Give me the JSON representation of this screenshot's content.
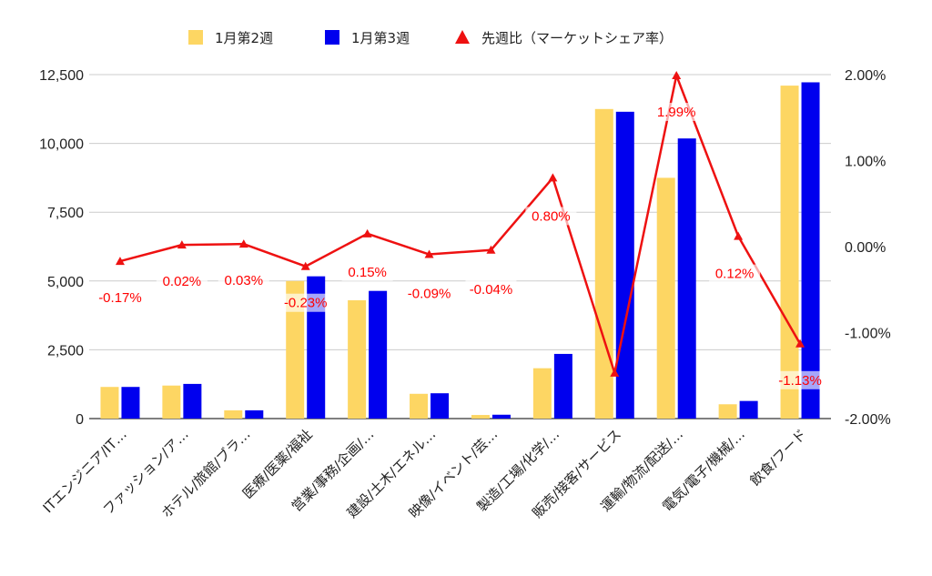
{
  "chart_data": {
    "type": "bar",
    "categories": [
      "ITエンジニア/IT…",
      "ファッション/ア…",
      "ホテル/旅館/ブラ…",
      "医療/医薬/福祉",
      "営業/事務/企画/…",
      "建設/土木/エネル…",
      "映像/イベント/芸…",
      "製造/工場/化学/…",
      "販売/接客/サービス",
      "運輸/物流/配送/…",
      "電気/電子/機械/…",
      "飲食/フード"
    ],
    "series": [
      {
        "name": "1月第2週",
        "kind": "bar",
        "axis": "left",
        "color": "#fdd663",
        "values": [
          1150,
          1200,
          300,
          5000,
          4300,
          900,
          130,
          1830,
          11250,
          8750,
          520,
          12100
        ]
      },
      {
        "name": "1月第3週",
        "kind": "bar",
        "axis": "left",
        "color": "#0000ee",
        "values": [
          1150,
          1260,
          300,
          5170,
          4640,
          920,
          140,
          2350,
          11150,
          10180,
          640,
          12220
        ]
      },
      {
        "name": "先週比（マーケットシェア率）",
        "kind": "line",
        "axis": "right",
        "color": "#ee1111",
        "values": [
          -0.17,
          0.02,
          0.03,
          -0.23,
          0.15,
          -0.09,
          -0.04,
          0.8,
          -1.47,
          1.99,
          0.12,
          -1.13
        ],
        "labels": [
          "-0.17%",
          "0.02%",
          "0.03%",
          "-0.23%",
          "0.15%",
          "-0.09%",
          "-0.04%",
          "0.80%",
          "",
          "1.99%",
          "0.12%",
          "-1.13%"
        ]
      }
    ],
    "y_left": {
      "ylim": [
        0,
        12500
      ],
      "ticks": [
        "0",
        "2,500",
        "5,000",
        "7,500",
        "10,000",
        "12,500"
      ]
    },
    "y_right": {
      "ylim": [
        -2,
        2
      ],
      "ticks": [
        "-2.00%",
        "-1.00%",
        "0.00%",
        "1.00%",
        "2.00%"
      ]
    },
    "title": "",
    "xlabel": "",
    "ylabel": "",
    "grid": true,
    "legend_position": "top"
  }
}
